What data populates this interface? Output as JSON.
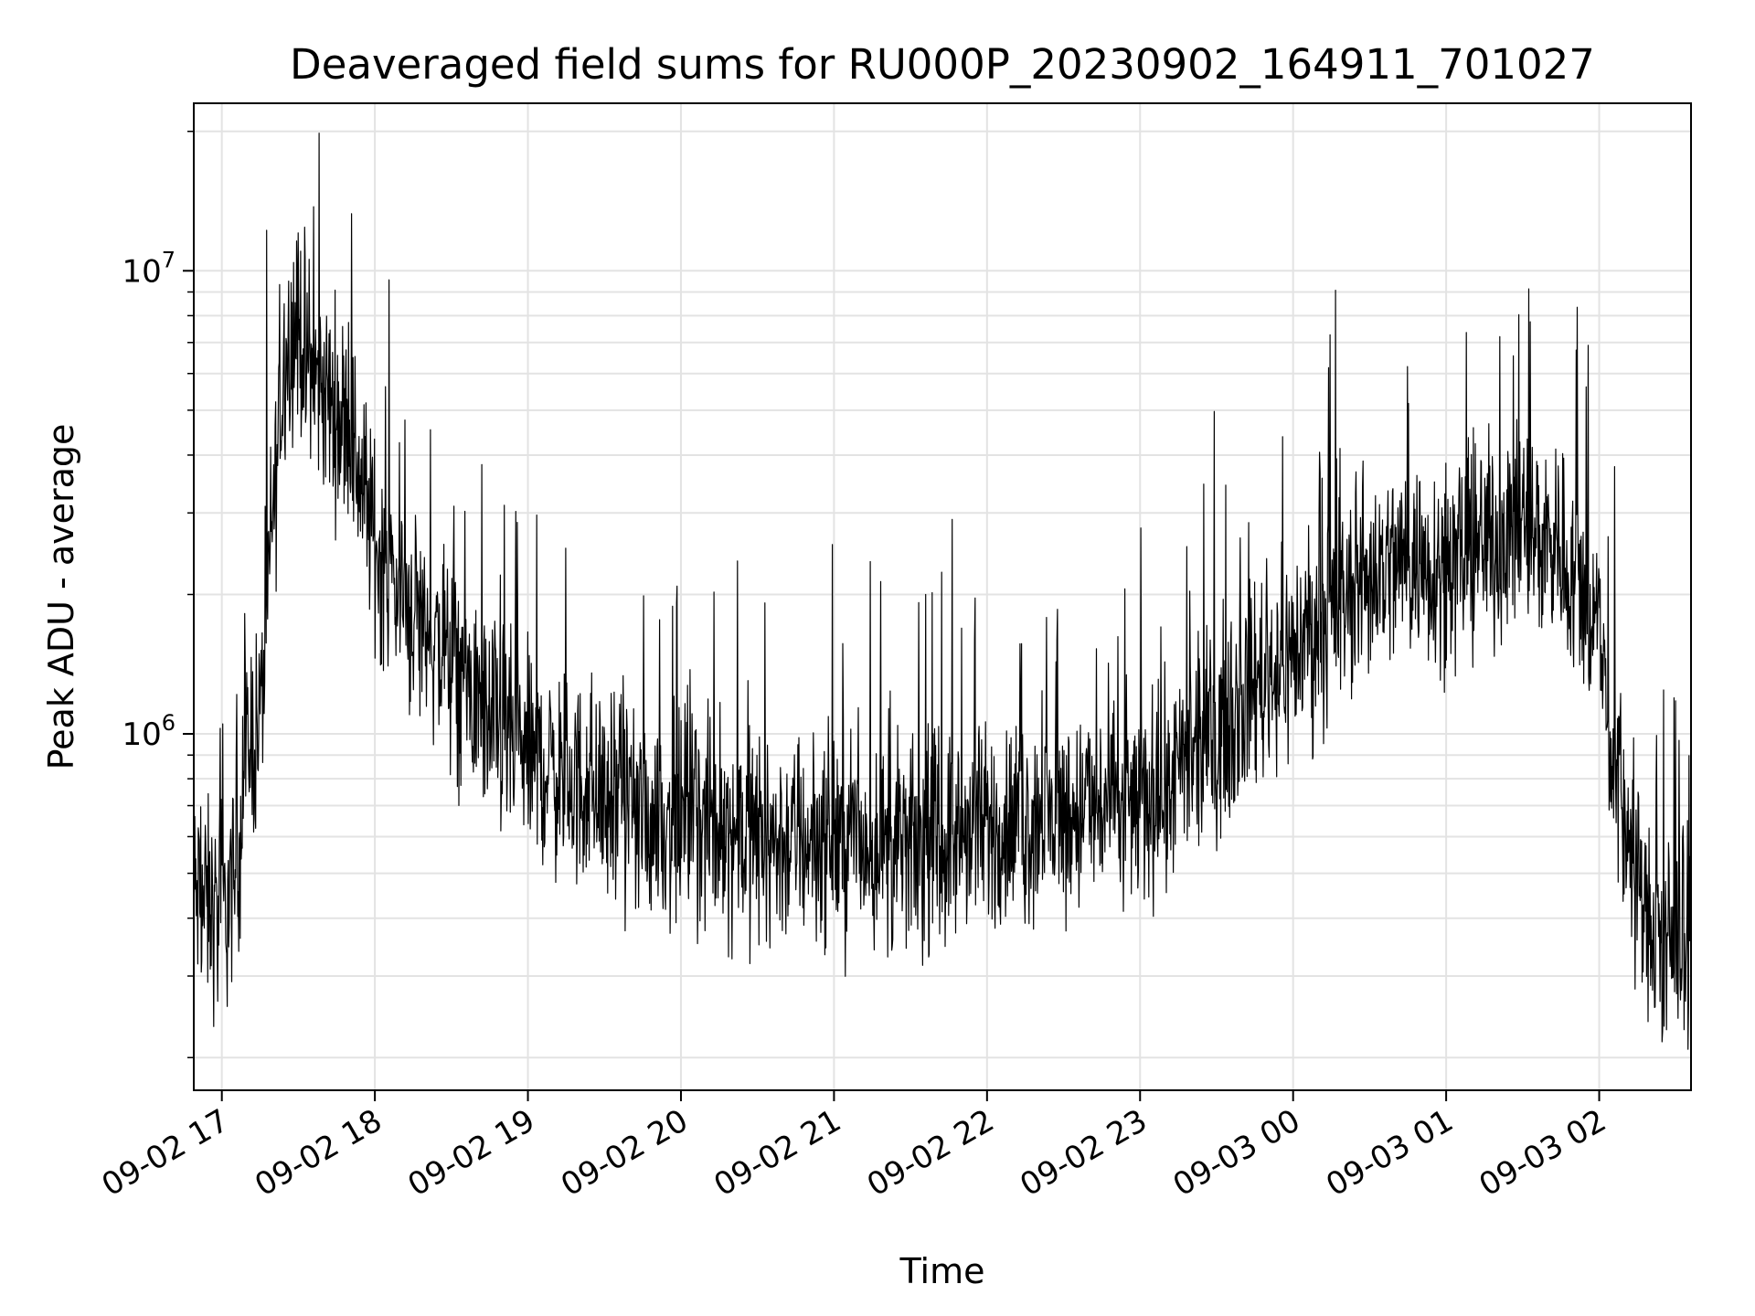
{
  "chart_data": {
    "type": "line",
    "title": "Deaveraged field sums for RU000P_20230902_164911_701027",
    "xlabel": "Time",
    "ylabel": "Peak ADU - average",
    "yscale": "log",
    "ylim": [
      170000,
      23000000
    ],
    "xlim": [
      "2023-09-02 16:49",
      "2023-09-03 02:36"
    ],
    "x_ticks": [
      {
        "t": "2023-09-02 17:00",
        "label": "09-02 17"
      },
      {
        "t": "2023-09-02 18:00",
        "label": "09-02 18"
      },
      {
        "t": "2023-09-02 19:00",
        "label": "09-02 19"
      },
      {
        "t": "2023-09-02 20:00",
        "label": "09-02 20"
      },
      {
        "t": "2023-09-02 21:00",
        "label": "09-02 21"
      },
      {
        "t": "2023-09-02 22:00",
        "label": "09-02 22"
      },
      {
        "t": "2023-09-02 23:00",
        "label": "09-02 23"
      },
      {
        "t": "2023-09-03 00:00",
        "label": "09-03 00"
      },
      {
        "t": "2023-09-03 01:00",
        "label": "09-03 01"
      },
      {
        "t": "2023-09-03 02:00",
        "label": "09-03 02"
      }
    ],
    "y_ticks": [
      {
        "value": 1000000,
        "base": "10",
        "exp": "6"
      },
      {
        "value": 10000000,
        "base": "10",
        "exp": "7"
      }
    ],
    "grid": true,
    "line_color": "#000000",
    "series": [
      {
        "x": [
          "2023-09-02 16:49",
          "2023-09-02 16:55",
          "2023-09-02 17:00",
          "2023-09-02 17:05",
          "2023-09-02 17:10",
          "2023-09-02 17:15",
          "2023-09-02 17:20",
          "2023-09-02 17:25",
          "2023-09-02 17:30",
          "2023-09-02 17:35",
          "2023-09-02 17:40",
          "2023-09-02 17:45",
          "2023-09-02 17:50",
          "2023-09-02 17:55",
          "2023-09-02 18:00",
          "2023-09-02 18:10",
          "2023-09-02 18:20",
          "2023-09-02 18:30",
          "2023-09-02 18:40",
          "2023-09-02 18:50",
          "2023-09-02 19:00",
          "2023-09-02 19:15",
          "2023-09-02 19:30",
          "2023-09-02 19:45",
          "2023-09-02 20:00",
          "2023-09-02 20:20",
          "2023-09-02 20:40",
          "2023-09-02 21:00",
          "2023-09-02 21:20",
          "2023-09-02 21:40",
          "2023-09-02 22:00",
          "2023-09-02 22:20",
          "2023-09-02 22:40",
          "2023-09-02 23:00",
          "2023-09-02 23:15",
          "2023-09-02 23:30",
          "2023-09-02 23:45",
          "2023-09-03 00:00",
          "2023-09-03 00:15",
          "2023-09-03 00:30",
          "2023-09-03 00:45",
          "2023-09-03 01:00",
          "2023-09-03 01:15",
          "2023-09-03 01:30",
          "2023-09-03 01:45",
          "2023-09-03 02:00",
          "2023-09-03 02:05",
          "2023-09-03 02:10",
          "2023-09-03 02:15",
          "2023-09-03 02:20",
          "2023-09-03 02:25",
          "2023-09-03 02:30",
          "2023-09-03 02:36"
        ],
        "y": [
          450000,
          420000,
          400000,
          480000,
          950000,
          1050000,
          3000000,
          7000000,
          7500000,
          6000000,
          5500000,
          5000000,
          4500000,
          3500000,
          2600000,
          2000000,
          1700000,
          1400000,
          1150000,
          1000000,
          900000,
          800000,
          720000,
          660000,
          650000,
          620000,
          580000,
          600000,
          560000,
          580000,
          620000,
          650000,
          690000,
          700000,
          800000,
          1000000,
          1300000,
          1500000,
          1800000,
          2200000,
          2400000,
          2300000,
          2600000,
          2800000,
          2500000,
          1700000,
          900000,
          650000,
          480000,
          370000,
          330000,
          340000,
          420000
        ]
      }
    ]
  }
}
